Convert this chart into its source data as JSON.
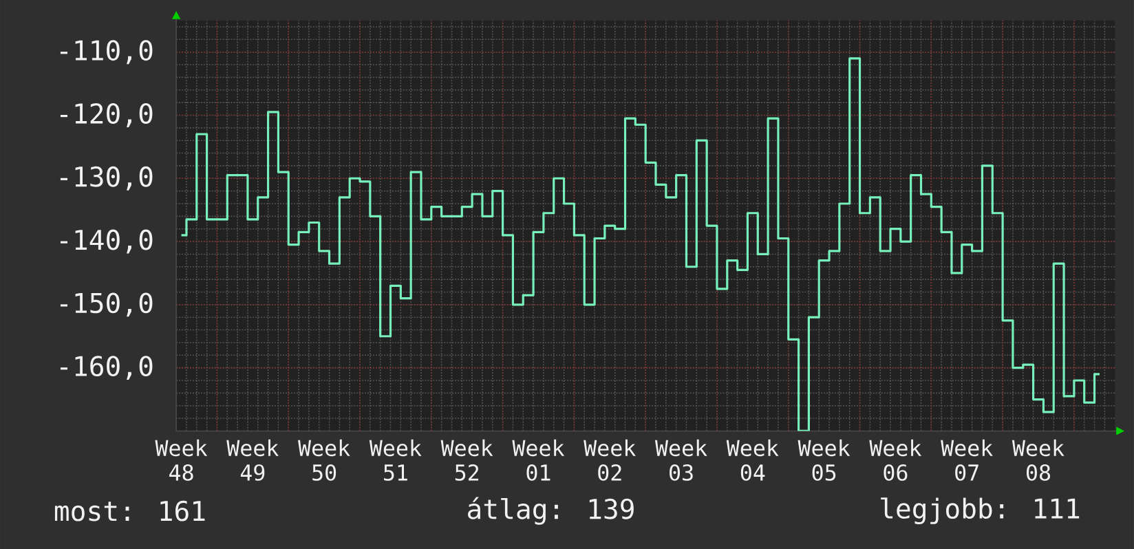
{
  "chart_data": {
    "type": "step",
    "categories": [
      "Week 48",
      null,
      null,
      null,
      null,
      null,
      null,
      "Week 49",
      null,
      null,
      null,
      null,
      null,
      null,
      "Week 50",
      null,
      null,
      null,
      null,
      null,
      null,
      "Week 51",
      null,
      null,
      null,
      null,
      null,
      null,
      "Week 52",
      null,
      null,
      null,
      null,
      null,
      null,
      "Week 01",
      null,
      null,
      null,
      null,
      null,
      null,
      "Week 02",
      null,
      null,
      null,
      null,
      null,
      null,
      "Week 03",
      null,
      null,
      null,
      null,
      null,
      null,
      "Week 04",
      null,
      null,
      null,
      null,
      null,
      null,
      "Week 05",
      null,
      null,
      null,
      null,
      null,
      null,
      "Week 06",
      null,
      null,
      null,
      null,
      null,
      null,
      "Week 07",
      null,
      null,
      null,
      null,
      null,
      null,
      "Week 08",
      null,
      null,
      null,
      null,
      null,
      null,
      null
    ],
    "values": [
      -139,
      -136.5,
      -123,
      -136.5,
      -136.5,
      -129.5,
      -129.5,
      -136.5,
      -133,
      -119.5,
      -129,
      -140.5,
      -138.5,
      -137,
      -141.5,
      -143.5,
      -133,
      -130,
      -130.5,
      -136,
      -155,
      -147,
      -149,
      -129,
      -136.5,
      -134.5,
      -136,
      -136,
      -134.5,
      -132.5,
      -136,
      -132,
      -139,
      -150,
      -148.5,
      -138.5,
      -135.5,
      -130,
      -134,
      -139,
      -150,
      -139.5,
      -137.5,
      -138,
      -120.5,
      -121.5,
      -127.5,
      -131,
      -133,
      -129.5,
      -144,
      -124,
      -137.5,
      -147.5,
      -143,
      -144.5,
      -135.5,
      -142,
      -120.5,
      -139.5,
      -155.5,
      -170,
      -152,
      -143,
      -141.5,
      -134,
      -111,
      -135.5,
      -133,
      -141.5,
      -138,
      -140,
      -129.5,
      -132.5,
      -134.5,
      -138.5,
      -145,
      -140.5,
      -141.5,
      -128,
      -135.5,
      -152.5,
      -160,
      -159.5,
      -165,
      -167,
      -143.5,
      -164.5,
      -162,
      -165.5,
      -161,
      null
    ],
    "color": "#78f0bc",
    "ylim": [
      -170,
      -105
    ],
    "yticks": [
      {
        "value": -160,
        "label": "-160,0"
      },
      {
        "value": -150,
        "label": "-150,0"
      },
      {
        "value": -140,
        "label": "-140,0"
      },
      {
        "value": -130,
        "label": "-130,0"
      },
      {
        "value": -120,
        "label": "-120,0"
      },
      {
        "value": -110,
        "label": "-110,0"
      }
    ],
    "grid": true,
    "annotations": [
      "most: 161",
      "átlag: 139",
      "legjobb: 111"
    ]
  }
}
